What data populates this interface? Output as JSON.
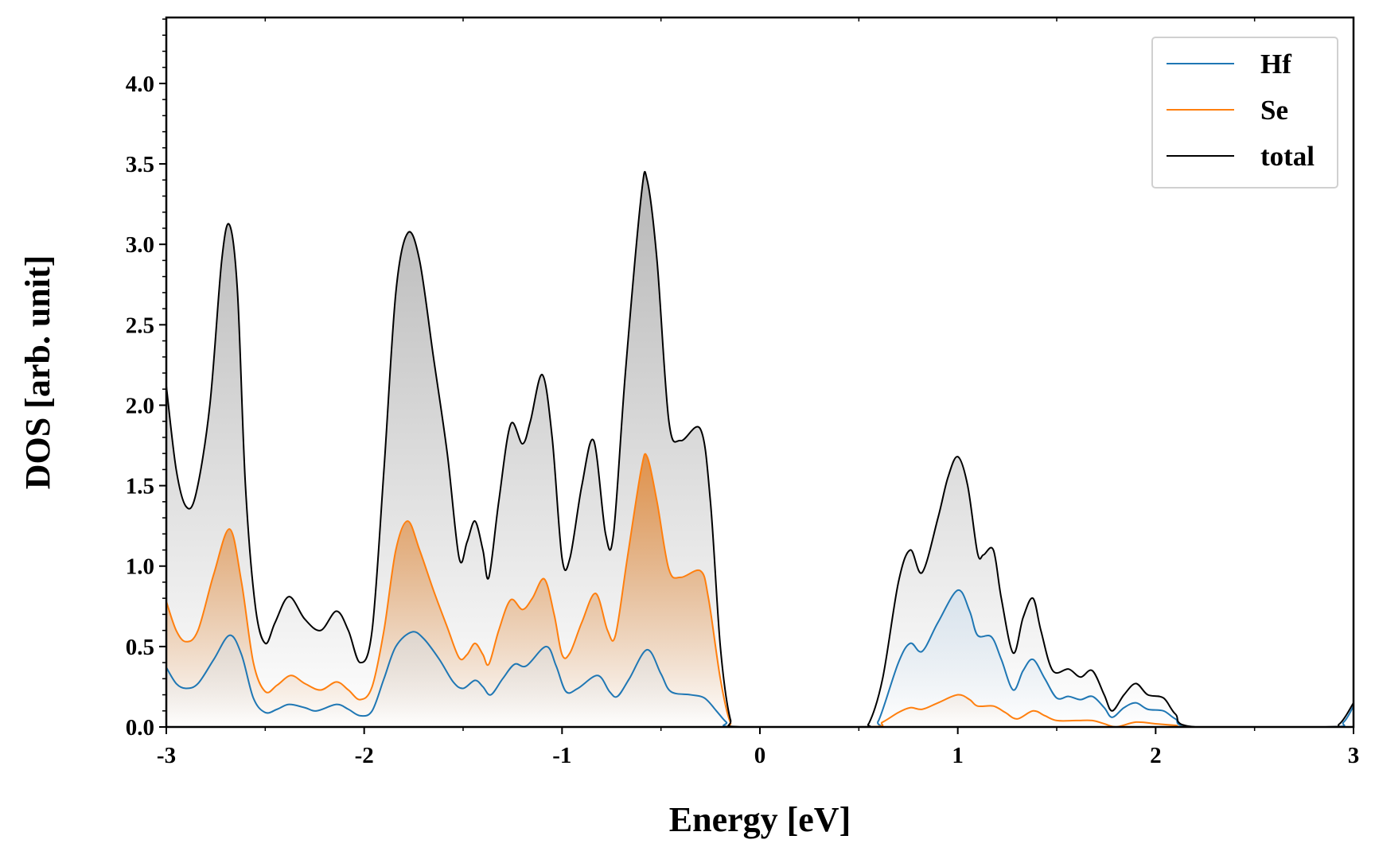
{
  "chart_data": {
    "type": "line",
    "title": "",
    "xlabel": "Energy [eV]",
    "ylabel": "DOS [arb. unit]",
    "xlim": [
      -3,
      3
    ],
    "ylim": [
      0,
      4.41
    ],
    "xticks": [
      -3,
      -2,
      -1,
      0,
      1,
      2,
      3
    ],
    "xtick_labels": [
      "-3",
      "-2",
      "-1",
      "0",
      "1",
      "2",
      "3"
    ],
    "yticks": [
      0,
      0.5,
      1,
      1.5,
      2,
      2.5,
      3,
      3.5,
      4
    ],
    "ytick_labels": [
      "0.0",
      "0.5",
      "1.0",
      "1.5",
      "2.0",
      "2.5",
      "3.0",
      "3.5",
      "4.0"
    ],
    "grid": false,
    "legend_position": "top-right",
    "series": [
      {
        "name": "Hf",
        "color": "#1f77b4",
        "fill": "#c9dced",
        "x": [
          -3,
          -2.95,
          -2.9,
          -2.84,
          -2.76,
          -2.68,
          -2.62,
          -2.56,
          -2.5,
          -2.44,
          -2.38,
          -2.3,
          -2.24,
          -2.14,
          -2.08,
          -2.02,
          -1.96,
          -1.9,
          -1.84,
          -1.76,
          -1.7,
          -1.62,
          -1.55,
          -1.5,
          -1.44,
          -1.4,
          -1.36,
          -1.3,
          -1.24,
          -1.18,
          -1.08,
          -1.03,
          -0.98,
          -0.92,
          -0.82,
          -0.76,
          -0.72,
          -0.66,
          -0.57,
          -0.5,
          -0.45,
          -0.35,
          -0.28,
          -0.22,
          -0.17,
          -0.12,
          0.55,
          0.6,
          0.7,
          0.76,
          0.82,
          0.9,
          1.0,
          1.06,
          1.1,
          1.17,
          1.22,
          1.28,
          1.33,
          1.38,
          1.44,
          1.5,
          1.56,
          1.62,
          1.68,
          1.74,
          1.78,
          1.84,
          1.9,
          1.96,
          2.04,
          2.1,
          2.2,
          2.88,
          2.95,
          3.0
        ],
        "y": [
          0.37,
          0.27,
          0.24,
          0.27,
          0.42,
          0.57,
          0.45,
          0.18,
          0.09,
          0.11,
          0.14,
          0.12,
          0.1,
          0.14,
          0.11,
          0.07,
          0.1,
          0.3,
          0.5,
          0.59,
          0.55,
          0.42,
          0.28,
          0.24,
          0.29,
          0.25,
          0.2,
          0.3,
          0.39,
          0.38,
          0.5,
          0.38,
          0.22,
          0.24,
          0.32,
          0.22,
          0.19,
          0.3,
          0.48,
          0.33,
          0.22,
          0.2,
          0.18,
          0.1,
          0.03,
          0,
          0,
          0.04,
          0.4,
          0.52,
          0.47,
          0.65,
          0.85,
          0.72,
          0.57,
          0.56,
          0.42,
          0.23,
          0.35,
          0.42,
          0.3,
          0.18,
          0.19,
          0.17,
          0.19,
          0.12,
          0.06,
          0.12,
          0.15,
          0.11,
          0.1,
          0.05,
          0,
          0,
          0.03,
          0.13
        ]
      },
      {
        "name": "Se",
        "color": "#ff7f0e",
        "fill": "#e08a3c",
        "x": [
          -3,
          -2.95,
          -2.9,
          -2.84,
          -2.76,
          -2.68,
          -2.62,
          -2.56,
          -2.5,
          -2.44,
          -2.37,
          -2.3,
          -2.22,
          -2.14,
          -2.08,
          -2.02,
          -1.96,
          -1.9,
          -1.84,
          -1.78,
          -1.72,
          -1.65,
          -1.58,
          -1.52,
          -1.48,
          -1.44,
          -1.4,
          -1.37,
          -1.32,
          -1.26,
          -1.2,
          -1.15,
          -1.09,
          -1.04,
          -1.0,
          -0.96,
          -0.9,
          -0.83,
          -0.77,
          -0.73,
          -0.67,
          -0.6,
          -0.57,
          -0.52,
          -0.46,
          -0.4,
          -0.3,
          -0.26,
          -0.2,
          -0.15,
          -0.1,
          0.55,
          0.62,
          0.7,
          0.76,
          0.82,
          0.9,
          1.0,
          1.06,
          1.1,
          1.18,
          1.24,
          1.3,
          1.38,
          1.44,
          1.5,
          1.6,
          1.68,
          1.74,
          1.8,
          1.9,
          2.0,
          2.1,
          2.2,
          3.0
        ],
        "y": [
          0.78,
          0.6,
          0.53,
          0.6,
          0.95,
          1.23,
          0.9,
          0.4,
          0.22,
          0.26,
          0.32,
          0.27,
          0.23,
          0.28,
          0.23,
          0.17,
          0.25,
          0.6,
          1.1,
          1.28,
          1.1,
          0.85,
          0.62,
          0.43,
          0.45,
          0.52,
          0.45,
          0.39,
          0.6,
          0.79,
          0.73,
          0.8,
          0.92,
          0.7,
          0.45,
          0.46,
          0.65,
          0.83,
          0.6,
          0.57,
          1.05,
          1.6,
          1.68,
          1.4,
          0.98,
          0.93,
          0.97,
          0.8,
          0.3,
          0.03,
          0,
          0,
          0.03,
          0.09,
          0.12,
          0.11,
          0.15,
          0.2,
          0.17,
          0.13,
          0.13,
          0.09,
          0.05,
          0.1,
          0.07,
          0.04,
          0.04,
          0.04,
          0.02,
          0,
          0.03,
          0.02,
          0.01,
          0,
          0
        ]
      },
      {
        "name": "total",
        "color": "#000000",
        "fill": "#b4b4b4",
        "x": [
          -3,
          -2.95,
          -2.9,
          -2.85,
          -2.78,
          -2.72,
          -2.68,
          -2.64,
          -2.6,
          -2.55,
          -2.5,
          -2.45,
          -2.38,
          -2.3,
          -2.22,
          -2.14,
          -2.08,
          -2.02,
          -1.96,
          -1.9,
          -1.84,
          -1.78,
          -1.72,
          -1.65,
          -1.58,
          -1.52,
          -1.48,
          -1.44,
          -1.4,
          -1.37,
          -1.32,
          -1.26,
          -1.2,
          -1.16,
          -1.1,
          -1.05,
          -1.0,
          -0.96,
          -0.9,
          -0.84,
          -0.78,
          -0.74,
          -0.68,
          -0.6,
          -0.57,
          -0.52,
          -0.46,
          -0.4,
          -0.3,
          -0.25,
          -0.2,
          -0.15,
          -0.1,
          0.5,
          0.55,
          0.62,
          0.7,
          0.76,
          0.82,
          0.9,
          0.95,
          1.0,
          1.05,
          1.1,
          1.13,
          1.18,
          1.22,
          1.28,
          1.33,
          1.38,
          1.42,
          1.48,
          1.56,
          1.62,
          1.68,
          1.74,
          1.78,
          1.84,
          1.9,
          1.96,
          2.04,
          2.1,
          2.2,
          2.85,
          2.93,
          3.0
        ],
        "y": [
          2.12,
          1.6,
          1.37,
          1.45,
          2.0,
          2.9,
          3.12,
          2.7,
          1.5,
          0.75,
          0.52,
          0.65,
          0.81,
          0.67,
          0.6,
          0.72,
          0.6,
          0.4,
          0.6,
          1.6,
          2.7,
          3.07,
          2.9,
          2.3,
          1.7,
          1.05,
          1.15,
          1.28,
          1.1,
          0.93,
          1.4,
          1.88,
          1.76,
          1.9,
          2.19,
          1.8,
          1.05,
          1.05,
          1.5,
          1.78,
          1.2,
          1.2,
          2.2,
          3.3,
          3.4,
          2.9,
          1.9,
          1.78,
          1.85,
          1.4,
          0.5,
          0.05,
          0,
          0,
          0.02,
          0.3,
          0.9,
          1.1,
          0.96,
          1.3,
          1.55,
          1.68,
          1.5,
          1.08,
          1.07,
          1.1,
          0.8,
          0.46,
          0.68,
          0.8,
          0.6,
          0.35,
          0.36,
          0.31,
          0.35,
          0.2,
          0.1,
          0.2,
          0.27,
          0.2,
          0.18,
          0.08,
          0,
          0,
          0.02,
          0.15
        ]
      }
    ]
  }
}
